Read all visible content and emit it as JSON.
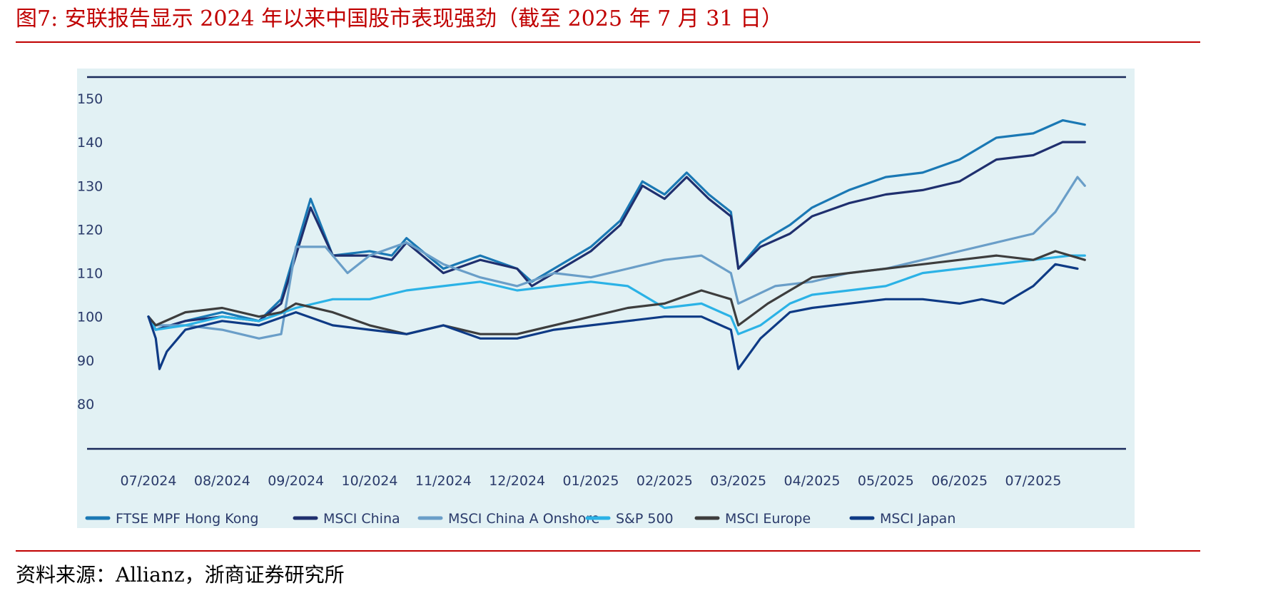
{
  "figure": {
    "title": "图7:   安联报告显示 2024 年以来中国股市表现强劲（截至 2025 年 7 月 31 日）",
    "source": "资料来源：Allianz，浙商证券研究所"
  },
  "chart_data": {
    "type": "line",
    "title": "",
    "xlabel": "",
    "ylabel": "",
    "ylim": [
      80,
      150
    ],
    "yticks": [
      150,
      140,
      130,
      120,
      110,
      100,
      90,
      80
    ],
    "xticks": [
      "07/2024",
      "08/2024",
      "09/2024",
      "10/2024",
      "11/2024",
      "12/2024",
      "01/2025",
      "02/2025",
      "03/2025",
      "04/2025",
      "05/2025",
      "06/2025",
      "07/2025"
    ],
    "xlim": [
      0,
      12.8
    ],
    "grid": false,
    "legend_position": "bottom",
    "series": [
      {
        "name": "FTSE MPF Hong Kong",
        "color": "#1a78b4",
        "x": [
          0,
          0.1,
          0.5,
          1.0,
          1.5,
          1.8,
          2.2,
          2.5,
          3.0,
          3.3,
          3.5,
          4.0,
          4.5,
          5.0,
          5.2,
          5.5,
          6.0,
          6.4,
          6.7,
          7.0,
          7.3,
          7.6,
          7.9,
          8.0,
          8.3,
          8.7,
          9.0,
          9.5,
          10.0,
          10.5,
          11.0,
          11.5,
          12.0,
          12.4,
          12.7
        ],
        "y": [
          100,
          97,
          99,
          101,
          99,
          104,
          127,
          114,
          115,
          114,
          118,
          111,
          114,
          111,
          108,
          111,
          116,
          122,
          131,
          128,
          133,
          128,
          124,
          111,
          117,
          121,
          125,
          129,
          132,
          133,
          136,
          141,
          142,
          145,
          144
        ]
      },
      {
        "name": "MSCI China",
        "color": "#1f2f6e",
        "x": [
          0,
          0.1,
          0.5,
          1.0,
          1.5,
          1.8,
          2.2,
          2.5,
          3.0,
          3.3,
          3.5,
          4.0,
          4.5,
          5.0,
          5.2,
          5.5,
          6.0,
          6.4,
          6.7,
          7.0,
          7.3,
          7.6,
          7.9,
          8.0,
          8.3,
          8.7,
          9.0,
          9.5,
          10.0,
          10.5,
          11.0,
          11.5,
          12.0,
          12.4,
          12.7
        ],
        "y": [
          100,
          97,
          99,
          100,
          99,
          103,
          125,
          114,
          114,
          113,
          117,
          110,
          113,
          111,
          107,
          110,
          115,
          121,
          130,
          127,
          132,
          127,
          123,
          111,
          116,
          119,
          123,
          126,
          128,
          129,
          131,
          136,
          137,
          140,
          140
        ]
      },
      {
        "name": "MSCI China A Onshore",
        "color": "#6a9ec8",
        "x": [
          0,
          0.1,
          0.5,
          1.0,
          1.5,
          1.8,
          2.0,
          2.4,
          2.7,
          3.0,
          3.5,
          4.0,
          4.5,
          5.0,
          5.5,
          6.0,
          6.5,
          7.0,
          7.5,
          7.9,
          8.0,
          8.5,
          9.0,
          9.5,
          10.0,
          10.5,
          11.0,
          11.5,
          12.0,
          12.3,
          12.6,
          12.7
        ],
        "y": [
          100,
          98,
          98,
          97,
          95,
          96,
          116,
          116,
          110,
          114,
          117,
          112,
          109,
          107,
          110,
          109,
          111,
          113,
          114,
          110,
          103,
          107,
          108,
          110,
          111,
          113,
          115,
          117,
          119,
          124,
          132,
          130
        ]
      },
      {
        "name": "S&P 500",
        "color": "#2bb2e6",
        "x": [
          0,
          0.1,
          0.5,
          1.0,
          1.5,
          2.0,
          2.5,
          3.0,
          3.5,
          4.0,
          4.5,
          5.0,
          5.5,
          6.0,
          6.5,
          7.0,
          7.5,
          7.9,
          8.0,
          8.3,
          8.7,
          9.0,
          9.5,
          10.0,
          10.5,
          11.0,
          11.5,
          12.0,
          12.5,
          12.7
        ],
        "y": [
          100,
          97,
          98,
          100,
          99,
          102,
          104,
          104,
          106,
          107,
          108,
          106,
          107,
          108,
          107,
          102,
          103,
          100,
          96,
          98,
          103,
          105,
          106,
          107,
          110,
          111,
          112,
          113,
          114,
          114
        ]
      },
      {
        "name": "MSCI Europe",
        "color": "#3d3d3d",
        "x": [
          0,
          0.1,
          0.5,
          1.0,
          1.5,
          1.8,
          2.0,
          2.5,
          3.0,
          3.5,
          4.0,
          4.5,
          5.0,
          5.5,
          6.0,
          6.5,
          7.0,
          7.5,
          7.9,
          8.0,
          8.4,
          8.7,
          9.0,
          9.5,
          10.0,
          10.5,
          11.0,
          11.5,
          12.0,
          12.3,
          12.7
        ],
        "y": [
          100,
          98,
          101,
          102,
          100,
          101,
          103,
          101,
          98,
          96,
          98,
          96,
          96,
          98,
          100,
          102,
          103,
          106,
          104,
          98,
          103,
          106,
          109,
          110,
          111,
          112,
          113,
          114,
          113,
          115,
          113
        ]
      },
      {
        "name": "MSCI Japan",
        "color": "#0e3a85",
        "x": [
          0,
          0.1,
          0.15,
          0.25,
          0.5,
          1.0,
          1.5,
          2.0,
          2.5,
          3.0,
          3.5,
          4.0,
          4.5,
          5.0,
          5.5,
          6.0,
          6.5,
          7.0,
          7.5,
          7.9,
          8.0,
          8.3,
          8.7,
          9.0,
          9.5,
          10.0,
          10.5,
          11.0,
          11.3,
          11.6,
          12.0,
          12.3,
          12.6
        ],
        "y": [
          100,
          95,
          88,
          92,
          97,
          99,
          98,
          101,
          98,
          97,
          96,
          98,
          95,
          95,
          97,
          98,
          99,
          100,
          100,
          97,
          88,
          95,
          101,
          102,
          103,
          104,
          104,
          103,
          104,
          103,
          107,
          112,
          111
        ]
      }
    ]
  }
}
